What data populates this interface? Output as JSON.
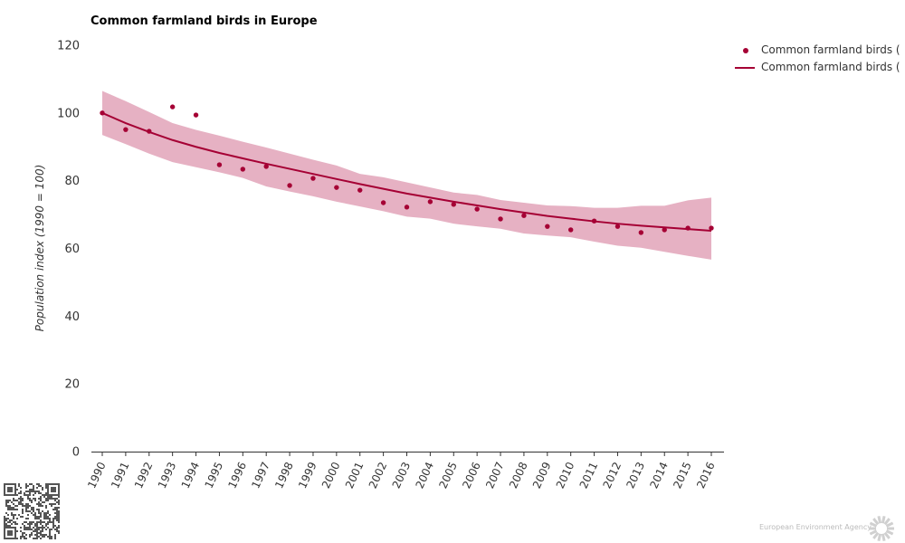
{
  "title": "Common farmland birds in Europe",
  "legend": [
    {
      "label": "Common farmland birds (",
      "symbol": "dot"
    },
    {
      "label": "Common farmland birds (",
      "symbol": "line"
    }
  ],
  "footer": {
    "agency": "European Environment Agency"
  },
  "colors": {
    "series": "#a50034",
    "band": "#e6b1c3",
    "axis": "#333333"
  },
  "chart_data": {
    "type": "line",
    "title": "Common farmland birds in Europe",
    "xlabel": "",
    "ylabel": "Population index (1990 = 100)",
    "ylim": [
      0,
      120
    ],
    "yticks": [
      "0",
      "20",
      "40",
      "60",
      "80",
      "100",
      "120"
    ],
    "x": [
      "1990",
      "1991",
      "1992",
      "1993",
      "1994",
      "1995",
      "1996",
      "1997",
      "1998",
      "1999",
      "2000",
      "2001",
      "2002",
      "2003",
      "2004",
      "2005",
      "2006",
      "2007",
      "2008",
      "2009",
      "2010",
      "2011",
      "2012",
      "2013",
      "2014",
      "2015",
      "2016"
    ],
    "series": [
      {
        "name": "Common farmland birds (",
        "kind": "points",
        "values": [
          100,
          95.1,
          94.6,
          101.8,
          99.4,
          84.7,
          83.4,
          84.2,
          78.6,
          80.7,
          78.0,
          77.2,
          73.5,
          72.2,
          73.8,
          73.0,
          71.6,
          68.7,
          69.7,
          66.5,
          65.5,
          68.1,
          66.5,
          64.7,
          65.5,
          66.0,
          66.0
        ]
      },
      {
        "name": "Common farmland birds (",
        "kind": "trend",
        "values": [
          100,
          97.0,
          94.4,
          92.0,
          90.0,
          88.2,
          86.6,
          85.0,
          83.5,
          82.0,
          80.5,
          79.0,
          77.6,
          76.2,
          75.0,
          73.8,
          72.7,
          71.6,
          70.6,
          69.6,
          68.8,
          68.0,
          67.3,
          66.7,
          66.2,
          65.7,
          65.2
        ]
      },
      {
        "name": "confidence band",
        "kind": "band",
        "upper": [
          106.5,
          103.5,
          100.3,
          97,
          95,
          93.3,
          91.5,
          89.8,
          88,
          86.2,
          84.5,
          82,
          81,
          79.5,
          78,
          76.5,
          75.8,
          74.3,
          73.5,
          72.7,
          72.5,
          72,
          72,
          72.6,
          72.6,
          74.2,
          75
        ],
        "lower": [
          93.5,
          90.8,
          88,
          85.5,
          84,
          82.5,
          80.8,
          78.3,
          76.8,
          75.4,
          73.8,
          72.4,
          71,
          69.4,
          68.8,
          67.3,
          66.5,
          65.8,
          64.4,
          63.8,
          63.3,
          62,
          60.8,
          60.2,
          59,
          57.8,
          56.7
        ]
      }
    ],
    "grid": false,
    "legend_position": "top-right"
  }
}
